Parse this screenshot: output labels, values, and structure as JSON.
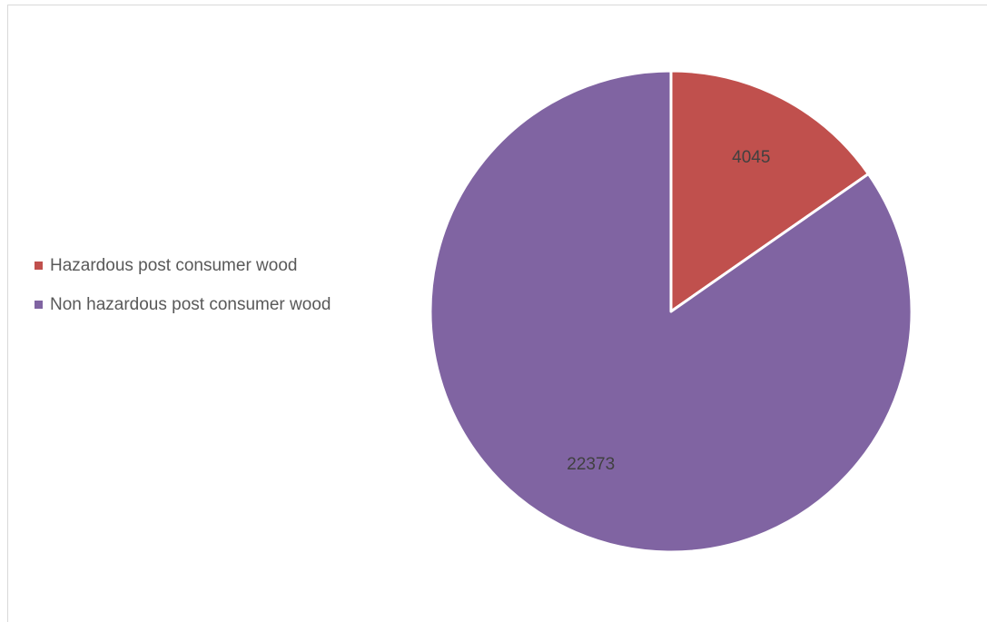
{
  "chart_data": {
    "type": "pie",
    "categories": [
      "Hazardous post consumer wood",
      "Non hazardous post consumer wood"
    ],
    "values": [
      4045,
      22373
    ],
    "data_labels": [
      "4045",
      "22373"
    ],
    "colors": [
      "#c0504d",
      "#8064a2"
    ],
    "slice_border_color": "#ffffff",
    "start_angle_deg": 0,
    "direction": "clockwise",
    "legend_position": "left"
  },
  "legend": {
    "items": [
      {
        "label": "Hazardous post consumer wood",
        "color": "#c0504d"
      },
      {
        "label": "Non hazardous post consumer wood",
        "color": "#8064a2"
      }
    ]
  }
}
